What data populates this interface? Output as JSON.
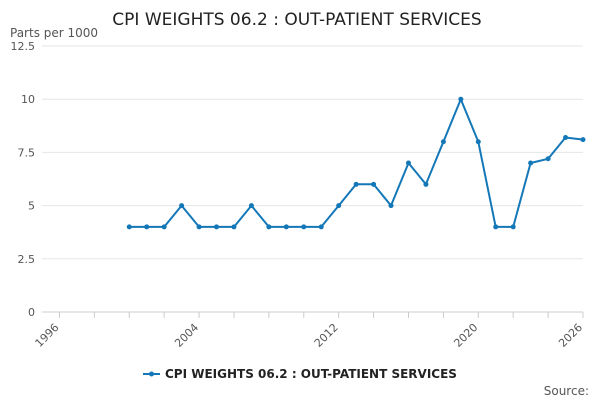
{
  "chart_data": {
    "type": "line",
    "title": "CPI WEIGHTS 06.2 : OUT-PATIENT SERVICES",
    "ylabel": "Parts per 1000",
    "xlabel": "",
    "xlim": [
      1995,
      2026
    ],
    "ylim": [
      0,
      12.5
    ],
    "x_ticks": [
      1996,
      2004,
      2012,
      2020,
      2026
    ],
    "y_ticks": [
      0,
      2.5,
      5,
      7.5,
      10,
      12.5
    ],
    "y_tick_labels": [
      "0",
      "2.5",
      "5",
      "7.5",
      "10",
      "12.5"
    ],
    "grid": "horizontal",
    "legend_position": "bottom",
    "series": [
      {
        "name": "CPI WEIGHTS 06.2 : OUT-PATIENT SERVICES",
        "color": "#1478b8",
        "x": [
          2000,
          2001,
          2002,
          2003,
          2004,
          2005,
          2006,
          2007,
          2008,
          2009,
          2010,
          2011,
          2012,
          2013,
          2014,
          2015,
          2016,
          2017,
          2018,
          2019,
          2020,
          2021,
          2022,
          2023,
          2024,
          2025,
          2026
        ],
        "values": [
          4,
          4,
          4,
          5,
          4,
          4,
          4,
          5,
          4,
          4,
          4,
          4,
          5,
          6,
          6,
          5,
          7,
          6,
          8,
          10,
          8,
          4,
          4,
          7,
          7.2,
          8.2,
          8.1
        ]
      }
    ],
    "source_label": "Source:"
  }
}
